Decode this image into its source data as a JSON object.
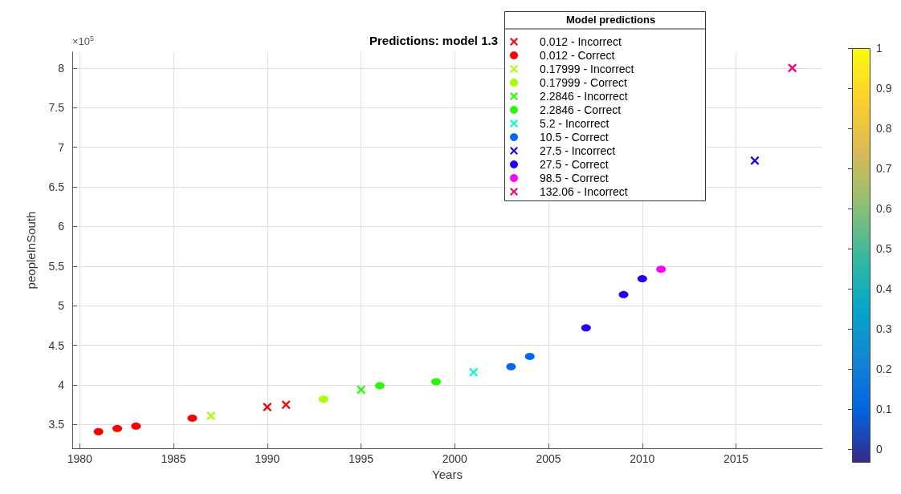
{
  "chart_data": {
    "type": "scatter",
    "title": "Predictions: model 1.3",
    "xlabel": "Years",
    "ylabel": "peopleInSouth",
    "legend_title": "Model predictions",
    "legend": "top right",
    "grid": true,
    "xlim": [
      1979.6,
      2019.6
    ],
    "xticks": [
      1980,
      1985,
      1990,
      1995,
      2000,
      2005,
      2010,
      2015
    ],
    "ylim": [
      3.2,
      8.2
    ],
    "yticks": [
      3.5,
      4,
      4.5,
      5,
      5.5,
      6,
      6.5,
      7,
      7.5,
      8
    ],
    "annotations": [
      "×10$^{5}$"
    ],
    "clim": [
      0,
      1
    ],
    "cticks": [
      0,
      0.1,
      0.2,
      0.3,
      0.4,
      0.5,
      0.6,
      0.7,
      0.8,
      0.9,
      1
    ],
    "series": [
      {
        "name": "0.012 - Incorrect",
        "color": "#ff0000",
        "marker": "cross",
        "x": [
          1990,
          1991
        ],
        "values": [
          3.72,
          3.75
        ]
      },
      {
        "name": "0.012 - Correct",
        "color": "#ff0000",
        "marker": "circle",
        "x": [
          1981,
          1982,
          1983,
          1986
        ],
        "values": [
          3.41,
          3.45,
          3.48,
          3.58
        ]
      },
      {
        "name": "0.17999 - Incorrect",
        "color": "#aaff00",
        "marker": "cross",
        "x": [
          1987
        ],
        "values": [
          3.61
        ]
      },
      {
        "name": "0.17999 - Correct",
        "color": "#aaff00",
        "marker": "circle",
        "x": [
          1993
        ],
        "values": [
          3.82
        ]
      },
      {
        "name": "2.2846 - Incorrect",
        "color": "#22ff00",
        "marker": "cross",
        "x": [
          1995
        ],
        "values": [
          3.94
        ]
      },
      {
        "name": "2.2846 - Correct",
        "color": "#22ff00",
        "marker": "circle",
        "x": [
          1996,
          1999
        ],
        "values": [
          3.99,
          4.04
        ]
      },
      {
        "name": "5.2 - Incorrect",
        "color": "#00ffcc",
        "marker": "cross",
        "x": [
          2001
        ],
        "values": [
          4.16
        ]
      },
      {
        "name": "10.5 - Correct",
        "color": "#0066ff",
        "marker": "circle",
        "x": [
          2003,
          2004
        ],
        "values": [
          4.23,
          4.36
        ]
      },
      {
        "name": "27.5 - Incorrect",
        "color": "#2200ff",
        "marker": "cross",
        "x": [
          2016
        ],
        "values": [
          6.83
        ]
      },
      {
        "name": "27.5 - Correct",
        "color": "#2200ff",
        "marker": "circle",
        "x": [
          2007,
          2009,
          2010
        ],
        "values": [
          4.72,
          5.14,
          5.34
        ]
      },
      {
        "name": "98.5 - Correct",
        "color": "#ff00ff",
        "marker": "circle",
        "x": [
          2011
        ],
        "values": [
          5.46
        ]
      },
      {
        "name": "132.06 - Incorrect",
        "color": "#ff0077",
        "marker": "cross",
        "x": [
          2018
        ],
        "values": [
          8.0
        ]
      }
    ]
  }
}
